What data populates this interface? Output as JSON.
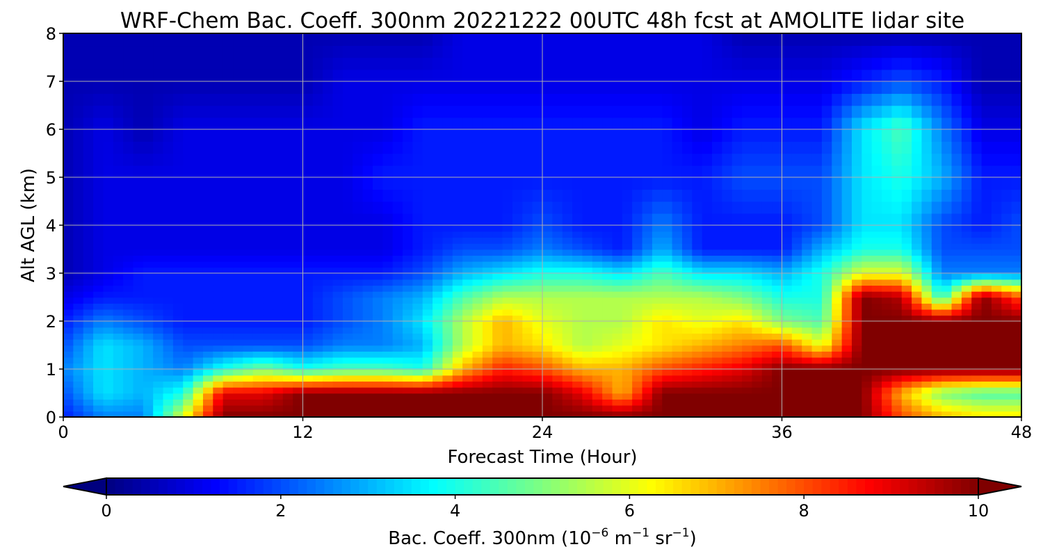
{
  "chart_data": {
    "type": "heatmap",
    "title": "WRF-Chem Bac. Coeff. 300nm  20221222 00UTC 48h fcst at AMOLITE lidar site",
    "xlabel": "Forecast Time (Hour)",
    "ylabel": "Alt AGL (km)",
    "xlim": [
      0,
      48
    ],
    "ylim": [
      0,
      8
    ],
    "xticks": [
      "0",
      "12",
      "24",
      "36",
      "48"
    ],
    "yticks": [
      "0",
      "1",
      "2",
      "3",
      "4",
      "5",
      "6",
      "7",
      "8"
    ],
    "grid": true,
    "colormap": "jet",
    "colorbar": {
      "orientation": "horizontal",
      "placement": "bottom",
      "range": [
        0,
        10
      ],
      "extend": "both",
      "ticks": [
        "0",
        "2",
        "4",
        "6",
        "8",
        "10"
      ],
      "label_main": "Bac. Coeff. 300nm  (10",
      "label_exp1": "−6",
      "label_mid": " m",
      "label_exp2": "−1",
      "label_mid2": " sr",
      "label_exp3": "−1",
      "label_end": ")"
    },
    "hours": [
      0,
      2,
      4,
      6,
      8,
      10,
      12,
      14,
      16,
      18,
      20,
      22,
      24,
      26,
      28,
      30,
      32,
      34,
      36,
      38,
      40,
      42,
      44,
      46,
      48
    ],
    "altitudes_km": [
      0,
      0.5,
      1,
      1.5,
      2,
      2.5,
      3,
      3.5,
      4,
      5,
      6,
      7,
      8
    ],
    "values": [
      [
        1.5,
        2.5,
        2.5,
        6,
        10,
        10,
        10,
        10,
        10,
        10,
        10,
        10,
        10,
        10,
        10,
        10,
        10,
        10,
        10,
        10,
        10,
        8,
        7,
        6.5,
        6.5
      ],
      [
        2,
        3.5,
        3,
        4,
        9,
        9,
        10,
        10,
        10,
        10,
        10,
        10,
        10,
        9,
        7,
        10,
        10,
        10,
        10,
        10,
        10,
        7,
        5,
        4.5,
        4.5
      ],
      [
        2.5,
        3.5,
        3,
        2.5,
        4,
        5,
        4,
        4.5,
        4.5,
        4,
        7,
        8.5,
        8,
        7,
        7,
        8,
        8.5,
        9,
        10,
        10,
        10,
        10,
        10,
        10,
        10
      ],
      [
        2,
        3.5,
        3,
        2,
        2,
        2,
        2,
        2.5,
        2.5,
        3,
        5.5,
        7,
        6.5,
        5.5,
        6,
        6.5,
        7,
        7.5,
        8,
        6,
        10,
        10,
        10,
        10,
        10
      ],
      [
        1.5,
        2.5,
        2,
        1.5,
        1.5,
        1.5,
        1.5,
        2,
        2.5,
        3.5,
        5.5,
        7,
        6,
        5.5,
        5.5,
        6.5,
        6,
        6.5,
        5,
        4.5,
        10,
        10,
        10,
        10,
        10
      ],
      [
        1,
        1.5,
        1.5,
        1.5,
        1.5,
        1.5,
        1.5,
        2,
        2.5,
        3,
        4.5,
        5.5,
        5.5,
        5.5,
        5.5,
        5.5,
        5.5,
        5,
        4,
        4,
        10,
        9.5,
        4,
        10,
        8
      ],
      [
        0.5,
        1,
        1.5,
        1.5,
        1.5,
        1.5,
        1.5,
        1.5,
        1.5,
        2,
        3,
        3.5,
        4,
        4,
        3.5,
        4.5,
        3.5,
        3.5,
        3,
        4,
        6,
        6,
        2.5,
        2.5,
        2.5
      ],
      [
        0.5,
        1,
        1,
        1,
        1,
        1,
        1,
        1,
        1,
        1.5,
        2,
        2,
        2.5,
        2,
        1.5,
        3,
        1.5,
        1.5,
        1.5,
        3,
        4,
        4,
        2,
        2,
        2
      ],
      [
        0.5,
        1,
        1,
        1,
        1,
        1,
        1,
        1,
        1,
        1.5,
        1.5,
        1.5,
        2,
        1.5,
        1.5,
        2.5,
        1.5,
        1.5,
        1.5,
        2,
        3.5,
        3.5,
        2,
        1.5,
        2
      ],
      [
        0.5,
        1,
        1,
        1,
        1,
        1,
        1,
        1,
        1.5,
        1.5,
        1.5,
        1.5,
        1.5,
        1.5,
        1.5,
        1.5,
        1.5,
        2,
        2,
        2,
        3.5,
        4,
        3,
        1.5,
        1.5
      ],
      [
        0.5,
        1,
        0.5,
        1,
        1,
        1,
        1,
        1,
        1,
        1.5,
        1.5,
        1.5,
        1.5,
        1.5,
        1.5,
        1.5,
        1,
        1.5,
        1.5,
        1.5,
        3.5,
        4.5,
        2.5,
        1,
        1
      ],
      [
        0.5,
        0.5,
        0.5,
        0.5,
        0.5,
        0.5,
        0.5,
        1,
        1,
        1,
        1,
        1,
        1,
        1,
        1,
        1,
        1,
        1,
        1,
        1,
        1.5,
        2,
        1.5,
        0.5,
        0.5
      ],
      [
        0.5,
        0.5,
        0.5,
        0.5,
        0.5,
        0.5,
        0.5,
        0.5,
        0.5,
        0.5,
        1,
        1,
        1,
        1,
        1,
        1,
        1,
        0.5,
        0.5,
        0.5,
        0.5,
        0.5,
        0.5,
        0.5,
        0.5
      ]
    ]
  }
}
